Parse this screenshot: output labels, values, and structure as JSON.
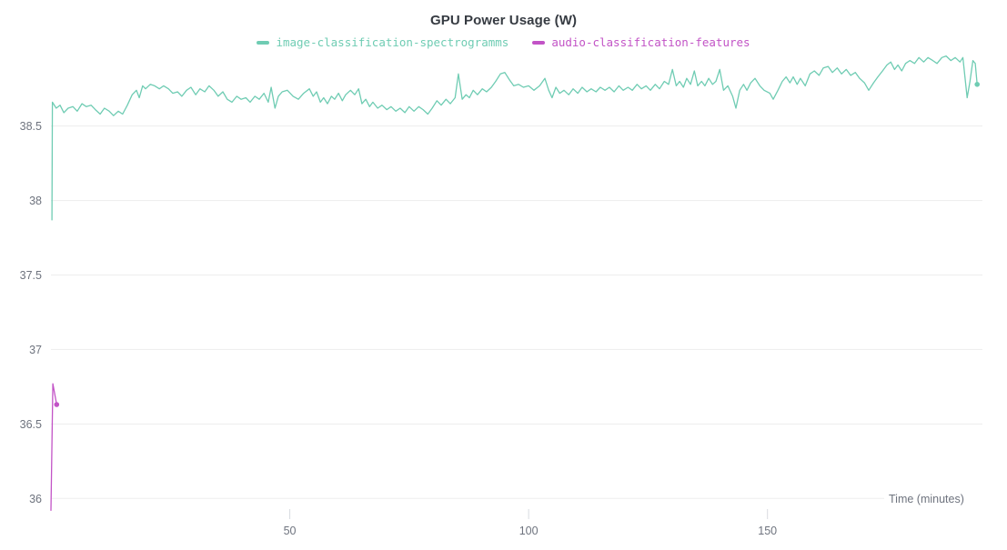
{
  "chart_data": {
    "type": "line",
    "title": "GPU Power Usage (W)",
    "xlabel": "Time (minutes)",
    "ylabel": "",
    "xlim": [
      0,
      195
    ],
    "ylim": [
      35.91,
      38.98
    ],
    "x_ticks": [
      50,
      100,
      150
    ],
    "y_ticks": [
      36,
      36.5,
      37,
      37.5,
      38,
      38.5
    ],
    "grid": "horizontal",
    "legend_position": "top-center",
    "colors": {
      "background": "#ffffff",
      "gridline": "#ededed",
      "tick_mark": "#d8dbe0",
      "tick_text": "#6e737e",
      "title_text": "#363b42"
    },
    "series": [
      {
        "name": "image-classification-spectrogramms",
        "color": "#6fccb3",
        "end_marker": true,
        "points": [
          [
            0.2,
            37.87
          ],
          [
            0.3,
            38.66
          ],
          [
            1.1,
            38.62
          ],
          [
            1.9,
            38.64
          ],
          [
            2.7,
            38.59
          ],
          [
            3.6,
            38.62
          ],
          [
            4.6,
            38.63
          ],
          [
            5.5,
            38.6
          ],
          [
            6.5,
            38.65
          ],
          [
            7.4,
            38.63
          ],
          [
            8.4,
            38.64
          ],
          [
            9.3,
            38.61
          ],
          [
            10.3,
            38.58
          ],
          [
            11.2,
            38.62
          ],
          [
            12.2,
            38.6
          ],
          [
            13.1,
            38.57
          ],
          [
            14.1,
            38.6
          ],
          [
            15.0,
            38.58
          ],
          [
            16.0,
            38.64
          ],
          [
            17.0,
            38.71
          ],
          [
            17.9,
            38.74
          ],
          [
            18.5,
            38.69
          ],
          [
            19.2,
            38.77
          ],
          [
            19.8,
            38.75
          ],
          [
            20.8,
            38.78
          ],
          [
            21.7,
            38.77
          ],
          [
            22.7,
            38.75
          ],
          [
            23.6,
            38.77
          ],
          [
            24.6,
            38.75
          ],
          [
            25.5,
            38.72
          ],
          [
            26.5,
            38.73
          ],
          [
            27.4,
            38.7
          ],
          [
            28.4,
            38.74
          ],
          [
            29.3,
            38.76
          ],
          [
            30.3,
            38.71
          ],
          [
            31.2,
            38.75
          ],
          [
            32.2,
            38.73
          ],
          [
            33.1,
            38.77
          ],
          [
            34.1,
            38.74
          ],
          [
            35.0,
            38.7
          ],
          [
            36.0,
            38.73
          ],
          [
            36.9,
            38.68
          ],
          [
            37.9,
            38.66
          ],
          [
            38.9,
            38.7
          ],
          [
            39.8,
            38.68
          ],
          [
            40.8,
            38.69
          ],
          [
            41.7,
            38.66
          ],
          [
            42.7,
            38.7
          ],
          [
            43.6,
            38.68
          ],
          [
            44.6,
            38.72
          ],
          [
            45.5,
            38.66
          ],
          [
            46.1,
            38.76
          ],
          [
            46.9,
            38.62
          ],
          [
            47.6,
            38.7
          ],
          [
            48.4,
            38.73
          ],
          [
            49.5,
            38.74
          ],
          [
            50.7,
            38.7
          ],
          [
            51.8,
            38.68
          ],
          [
            52.9,
            38.72
          ],
          [
            54.1,
            38.75
          ],
          [
            54.9,
            38.7
          ],
          [
            55.6,
            38.73
          ],
          [
            56.4,
            38.66
          ],
          [
            57.1,
            38.69
          ],
          [
            57.9,
            38.65
          ],
          [
            58.7,
            38.7
          ],
          [
            59.4,
            38.68
          ],
          [
            60.2,
            38.72
          ],
          [
            61.0,
            38.67
          ],
          [
            61.7,
            38.71
          ],
          [
            62.7,
            38.74
          ],
          [
            63.6,
            38.71
          ],
          [
            64.4,
            38.75
          ],
          [
            65.1,
            38.65
          ],
          [
            65.9,
            38.68
          ],
          [
            66.7,
            38.63
          ],
          [
            67.4,
            38.66
          ],
          [
            68.4,
            38.62
          ],
          [
            69.3,
            38.64
          ],
          [
            70.3,
            38.61
          ],
          [
            71.2,
            38.63
          ],
          [
            72.2,
            38.6
          ],
          [
            73.1,
            38.62
          ],
          [
            74.1,
            38.59
          ],
          [
            75.0,
            38.63
          ],
          [
            76.0,
            38.6
          ],
          [
            77.0,
            38.63
          ],
          [
            77.9,
            38.61
          ],
          [
            78.9,
            38.58
          ],
          [
            79.8,
            38.62
          ],
          [
            80.8,
            38.67
          ],
          [
            81.7,
            38.64
          ],
          [
            82.7,
            38.68
          ],
          [
            83.6,
            38.65
          ],
          [
            84.6,
            38.69
          ],
          [
            85.3,
            38.85
          ],
          [
            86.1,
            38.68
          ],
          [
            86.9,
            38.71
          ],
          [
            87.6,
            38.69
          ],
          [
            88.4,
            38.74
          ],
          [
            89.3,
            38.71
          ],
          [
            90.3,
            38.75
          ],
          [
            91.2,
            38.73
          ],
          [
            92.2,
            38.76
          ],
          [
            93.1,
            38.8
          ],
          [
            94.1,
            38.85
          ],
          [
            95.0,
            38.86
          ],
          [
            96.0,
            38.81
          ],
          [
            96.9,
            38.77
          ],
          [
            97.9,
            38.78
          ],
          [
            98.9,
            38.76
          ],
          [
            100.0,
            38.77
          ],
          [
            101.1,
            38.74
          ],
          [
            102.3,
            38.77
          ],
          [
            103.4,
            38.82
          ],
          [
            104.2,
            38.74
          ],
          [
            104.9,
            38.69
          ],
          [
            105.7,
            38.76
          ],
          [
            106.5,
            38.72
          ],
          [
            107.4,
            38.74
          ],
          [
            108.4,
            38.71
          ],
          [
            109.3,
            38.75
          ],
          [
            110.3,
            38.72
          ],
          [
            111.2,
            38.76
          ],
          [
            112.2,
            38.73
          ],
          [
            113.1,
            38.75
          ],
          [
            114.1,
            38.73
          ],
          [
            115.0,
            38.76
          ],
          [
            116.0,
            38.74
          ],
          [
            116.9,
            38.76
          ],
          [
            117.9,
            38.73
          ],
          [
            118.9,
            38.77
          ],
          [
            119.8,
            38.74
          ],
          [
            120.8,
            38.76
          ],
          [
            121.7,
            38.74
          ],
          [
            122.7,
            38.78
          ],
          [
            123.6,
            38.75
          ],
          [
            124.6,
            38.77
          ],
          [
            125.5,
            38.74
          ],
          [
            126.5,
            38.78
          ],
          [
            127.4,
            38.75
          ],
          [
            128.4,
            38.8
          ],
          [
            129.3,
            38.78
          ],
          [
            130.1,
            38.88
          ],
          [
            130.9,
            38.77
          ],
          [
            131.6,
            38.8
          ],
          [
            132.4,
            38.76
          ],
          [
            133.1,
            38.82
          ],
          [
            133.9,
            38.78
          ],
          [
            134.7,
            38.87
          ],
          [
            135.4,
            38.77
          ],
          [
            136.2,
            38.8
          ],
          [
            136.9,
            38.77
          ],
          [
            137.7,
            38.82
          ],
          [
            138.5,
            38.78
          ],
          [
            139.2,
            38.8
          ],
          [
            140.0,
            38.88
          ],
          [
            140.8,
            38.74
          ],
          [
            141.7,
            38.77
          ],
          [
            142.7,
            38.7
          ],
          [
            143.4,
            38.62
          ],
          [
            144.2,
            38.74
          ],
          [
            145.0,
            38.78
          ],
          [
            145.7,
            38.74
          ],
          [
            146.5,
            38.79
          ],
          [
            147.4,
            38.82
          ],
          [
            148.4,
            38.77
          ],
          [
            149.3,
            38.74
          ],
          [
            150.5,
            38.72
          ],
          [
            151.2,
            38.68
          ],
          [
            152.2,
            38.74
          ],
          [
            153.1,
            38.8
          ],
          [
            153.9,
            38.83
          ],
          [
            154.7,
            38.79
          ],
          [
            155.4,
            38.83
          ],
          [
            156.2,
            38.78
          ],
          [
            156.9,
            38.82
          ],
          [
            157.9,
            38.77
          ],
          [
            158.9,
            38.85
          ],
          [
            159.8,
            38.87
          ],
          [
            160.8,
            38.84
          ],
          [
            161.7,
            38.89
          ],
          [
            162.7,
            38.9
          ],
          [
            163.6,
            38.86
          ],
          [
            164.6,
            38.89
          ],
          [
            165.5,
            38.85
          ],
          [
            166.5,
            38.88
          ],
          [
            167.4,
            38.84
          ],
          [
            168.4,
            38.86
          ],
          [
            169.3,
            38.82
          ],
          [
            170.3,
            38.79
          ],
          [
            171.2,
            38.74
          ],
          [
            172.2,
            38.79
          ],
          [
            173.1,
            38.83
          ],
          [
            174.1,
            38.87
          ],
          [
            175.0,
            38.91
          ],
          [
            175.8,
            38.93
          ],
          [
            176.6,
            38.88
          ],
          [
            177.3,
            38.91
          ],
          [
            178.1,
            38.87
          ],
          [
            178.9,
            38.92
          ],
          [
            179.8,
            38.94
          ],
          [
            180.8,
            38.92
          ],
          [
            181.7,
            38.96
          ],
          [
            182.7,
            38.93
          ],
          [
            183.6,
            38.96
          ],
          [
            184.6,
            38.94
          ],
          [
            185.5,
            38.92
          ],
          [
            186.5,
            38.96
          ],
          [
            187.4,
            38.97
          ],
          [
            188.4,
            38.94
          ],
          [
            189.3,
            38.96
          ],
          [
            190.3,
            38.93
          ],
          [
            190.9,
            38.96
          ],
          [
            191.8,
            38.69
          ],
          [
            192.4,
            38.8
          ],
          [
            193.0,
            38.94
          ],
          [
            193.5,
            38.92
          ],
          [
            193.9,
            38.78
          ]
        ]
      },
      {
        "name": "audio-classification-features",
        "color": "#c253c6",
        "end_marker": true,
        "points": [
          [
            0.0,
            35.92
          ],
          [
            0.4,
            36.77
          ],
          [
            1.2,
            36.63
          ]
        ]
      }
    ]
  }
}
